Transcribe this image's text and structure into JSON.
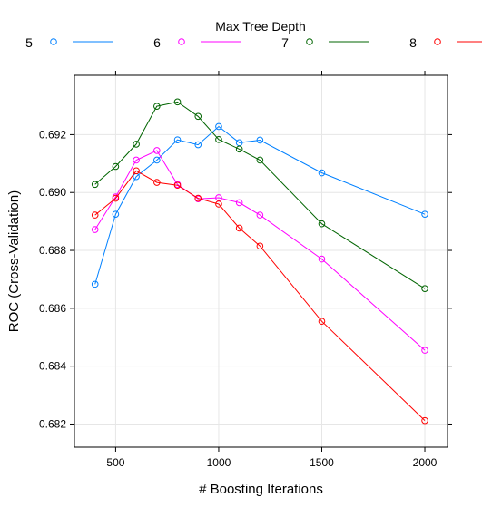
{
  "chart_data": {
    "type": "line",
    "legend_title": "Max Tree Depth",
    "legend_position": "top",
    "xlabel": "# Boosting Iterations",
    "ylabel": "ROC (Cross-Validation)",
    "xlim": [
      300,
      2110
    ],
    "ylim": [
      0.6812,
      0.69405
    ],
    "x_ticks": [
      500,
      1000,
      1500,
      2000
    ],
    "x_tick_labels": [
      "500",
      "1000",
      "1500",
      "2000"
    ],
    "y_ticks": [
      0.682,
      0.684,
      0.686,
      0.688,
      0.69,
      0.692
    ],
    "y_tick_labels": [
      "0.682",
      "0.684",
      "0.686",
      "0.688",
      "0.690",
      "0.692"
    ],
    "grid": true,
    "x": [
      400,
      500,
      600,
      700,
      800,
      900,
      1000,
      1100,
      1200,
      1500,
      2000
    ],
    "series": [
      {
        "name": "5",
        "color": "#0080ff",
        "values": [
          0.68683,
          0.68925,
          0.69055,
          0.69112,
          0.69182,
          0.69165,
          0.69228,
          0.69172,
          0.69181,
          0.69068,
          0.68925
        ]
      },
      {
        "name": "6",
        "color": "#ff00ff",
        "values": [
          0.68872,
          0.68985,
          0.69112,
          0.69145,
          0.69028,
          0.68978,
          0.68982,
          0.68965,
          0.68922,
          0.6877,
          0.68455
        ]
      },
      {
        "name": "7",
        "color": "#006400",
        "values": [
          0.69028,
          0.6909,
          0.69167,
          0.69298,
          0.69313,
          0.69263,
          0.69183,
          0.6915,
          0.69112,
          0.68892,
          0.68668
        ]
      },
      {
        "name": "8",
        "color": "#ff0000",
        "values": [
          0.68922,
          0.6898,
          0.69075,
          0.69035,
          0.69025,
          0.6898,
          0.6896,
          0.68877,
          0.68815,
          0.68555,
          0.68212
        ]
      }
    ]
  }
}
